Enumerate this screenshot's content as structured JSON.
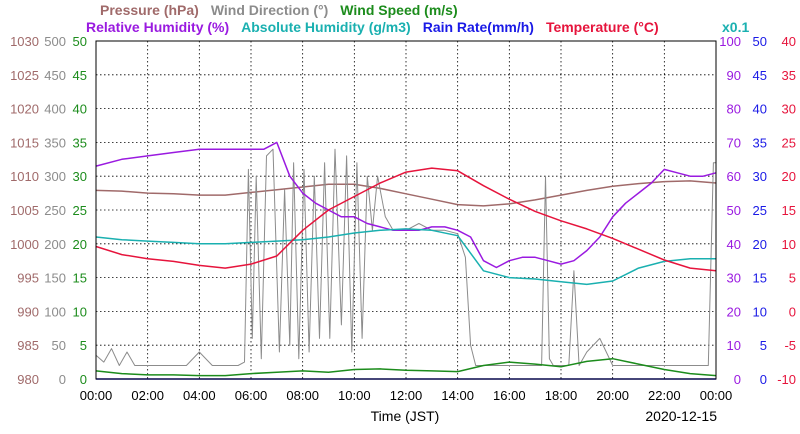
{
  "chart_data": {
    "type": "line",
    "legend": {
      "row1": [
        {
          "label": "Pressure (hPa)",
          "color": "#a06a6a"
        },
        {
          "label": "Wind Direction (°)",
          "color": "#8c8c8c"
        },
        {
          "label": "Wind Speed (m/s)",
          "color": "#1c8c1c"
        }
      ],
      "row2": [
        {
          "label": "Relative Humidity (%)",
          "color": "#9a1ae0"
        },
        {
          "label": "Absolute Humidity (g/m3)",
          "color": "#1ab0b0"
        },
        {
          "label": "Rain Rate(mm/h)",
          "color": "#1a1ae6"
        },
        {
          "label": "Temperature (°C)",
          "color": "#e6143c"
        }
      ],
      "scale_note": "x0.1"
    },
    "xlabel": "Time (JST)",
    "date": "2020-12-15",
    "x_ticks": [
      "00:00",
      "02:00",
      "04:00",
      "06:00",
      "08:00",
      "10:00",
      "12:00",
      "14:00",
      "16:00",
      "18:00",
      "20:00",
      "22:00",
      "00:00"
    ],
    "axes": {
      "pressure": {
        "color": "#a06a6a",
        "range": [
          980,
          1030
        ],
        "ticks": [
          "1030",
          "1025",
          "1020",
          "1015",
          "1010",
          "1005",
          "1000",
          "995",
          "990",
          "985",
          "980"
        ]
      },
      "wind_direction": {
        "color": "#8c8c8c",
        "range": [
          0,
          500
        ],
        "ticks": [
          "500",
          "450",
          "400",
          "350",
          "300",
          "250",
          "200",
          "150",
          "100",
          "50",
          "0"
        ]
      },
      "wind_speed": {
        "color": "#1c8c1c",
        "range": [
          0,
          50
        ],
        "ticks": [
          "50",
          "45",
          "40",
          "35",
          "30",
          "25",
          "20",
          "15",
          "10",
          "5",
          "0"
        ]
      },
      "relative_humidity": {
        "color": "#9a1ae0",
        "range": [
          0,
          100
        ],
        "ticks": [
          "100",
          "90",
          "80",
          "70",
          "60",
          "50",
          "40",
          "30",
          "20",
          "10",
          "0"
        ]
      },
      "rain_rate": {
        "color": "#1a1ae6",
        "range": [
          0,
          50
        ],
        "ticks": [
          "50",
          "45",
          "40",
          "35",
          "30",
          "25",
          "20",
          "15",
          "10",
          "5",
          "0"
        ]
      },
      "temperature": {
        "color": "#e6143c",
        "range": [
          -10,
          40
        ],
        "ticks": [
          "40",
          "35",
          "30",
          "25",
          "20",
          "15",
          "10",
          "5",
          "0",
          "-5",
          "-10"
        ]
      }
    },
    "grid": true,
    "series": [
      {
        "name": "Pressure (hPa)",
        "color": "#a06a6a",
        "axis": "pressure",
        "x": [
          0,
          1,
          2,
          3,
          4,
          5,
          6,
          7,
          8,
          9,
          10,
          11,
          12,
          13,
          14,
          15,
          16,
          17,
          18,
          19,
          20,
          21,
          22,
          23,
          24
        ],
        "y": [
          1007.9,
          1007.8,
          1007.5,
          1007.4,
          1007.2,
          1007.2,
          1007.6,
          1008.0,
          1008.4,
          1008.8,
          1008.8,
          1008.2,
          1007.4,
          1006.6,
          1005.8,
          1005.6,
          1005.9,
          1006.5,
          1007.2,
          1007.9,
          1008.5,
          1008.9,
          1009.2,
          1009.3,
          1009.0
        ]
      },
      {
        "name": "Wind Direction (°)",
        "color": "#8c8c8c",
        "axis": "wind_direction",
        "x": [
          0,
          0.3,
          0.6,
          0.9,
          1.2,
          1.5,
          2.0,
          2.5,
          3.0,
          3.5,
          4.0,
          4.5,
          5.0,
          5.5,
          5.75,
          5.9,
          6.05,
          6.2,
          6.4,
          6.6,
          6.85,
          7.1,
          7.3,
          7.5,
          7.65,
          7.85,
          8.05,
          8.25,
          8.45,
          8.65,
          8.85,
          9.05,
          9.25,
          9.5,
          9.7,
          9.9,
          10.1,
          10.3,
          10.5,
          10.7,
          10.9,
          11.2,
          11.5,
          12.0,
          12.5,
          13.0,
          13.5,
          14.0,
          14.3,
          14.5,
          14.7,
          15.0,
          15.5,
          16.0,
          16.5,
          17.0,
          17.25,
          17.4,
          17.55,
          17.7,
          18.0,
          18.3,
          18.5,
          18.7,
          19.0,
          19.5,
          20.0,
          20.5,
          21.0,
          21.5,
          22.0,
          22.5,
          23.0,
          23.4,
          23.7,
          23.9,
          24.0
        ],
        "y": [
          35,
          25,
          45,
          20,
          40,
          20,
          20,
          20,
          20,
          20,
          40,
          20,
          20,
          20,
          25,
          310,
          60,
          300,
          30,
          330,
          340,
          40,
          280,
          50,
          320,
          30,
          310,
          40,
          300,
          60,
          320,
          60,
          340,
          80,
          330,
          40,
          320,
          60,
          300,
          220,
          300,
          240,
          220,
          220,
          230,
          220,
          220,
          215,
          180,
          50,
          20,
          20,
          20,
          20,
          20,
          20,
          20,
          300,
          30,
          20,
          20,
          20,
          160,
          20,
          40,
          60,
          20,
          20,
          20,
          20,
          20,
          20,
          20,
          20,
          20,
          320,
          320
        ]
      },
      {
        "name": "Wind Speed (m/s)",
        "color": "#1c8c1c",
        "axis": "wind_speed",
        "x": [
          0,
          1,
          2,
          3,
          4,
          5,
          6,
          7,
          8,
          9,
          10,
          11,
          12,
          13,
          14,
          15,
          16,
          17,
          18,
          19,
          20,
          21,
          22,
          23,
          24
        ],
        "y": [
          1.2,
          0.8,
          0.6,
          0.6,
          0.5,
          0.5,
          0.8,
          1.0,
          1.2,
          1.0,
          1.4,
          1.5,
          1.3,
          1.2,
          1.1,
          2.0,
          2.5,
          2.2,
          1.8,
          2.6,
          3.0,
          2.2,
          1.4,
          0.8,
          0.5
        ]
      },
      {
        "name": "Relative Humidity (%)",
        "color": "#9a1ae0",
        "axis": "relative_humidity",
        "x": [
          0,
          1,
          2,
          3,
          4,
          5,
          6,
          6.5,
          7,
          7.5,
          8,
          8.5,
          9,
          9.5,
          10,
          10.5,
          11,
          11.5,
          12,
          12.5,
          13,
          13.5,
          14,
          14.5,
          15,
          15.5,
          16,
          16.5,
          17,
          17.5,
          18,
          18.5,
          19,
          19.5,
          20,
          20.5,
          21,
          21.5,
          22,
          22.5,
          23,
          23.5,
          24
        ],
        "y": [
          63,
          65,
          66,
          67,
          68,
          68,
          68,
          68,
          70,
          60,
          55,
          52,
          50,
          48,
          48,
          46,
          45,
          44,
          44,
          44,
          45,
          45,
          44,
          42,
          35,
          33,
          35,
          36,
          36,
          35,
          34,
          35,
          38,
          42,
          48,
          52,
          55,
          58,
          62,
          61,
          60,
          60,
          61
        ]
      },
      {
        "name": "Absolute Humidity (g/m3)",
        "color": "#1ab0b0",
        "axis": "rain_rate",
        "x": [
          0,
          1,
          2,
          3,
          4,
          5,
          6,
          7,
          8,
          9,
          10,
          11,
          12,
          13,
          14,
          15,
          16,
          17,
          18,
          19,
          20,
          21,
          22,
          23,
          24
        ],
        "y": [
          21.0,
          20.6,
          20.4,
          20.2,
          20.0,
          20.0,
          20.2,
          20.4,
          20.6,
          21.0,
          21.6,
          22.0,
          22.2,
          22.0,
          21.2,
          16.0,
          15.0,
          14.8,
          14.4,
          14.0,
          14.5,
          16.4,
          17.4,
          17.8,
          17.8
        ]
      },
      {
        "name": "Rain Rate(mm/h)",
        "color": "#1a1ae6",
        "axis": "rain_rate",
        "x": [
          0,
          24
        ],
        "y": [
          0,
          0
        ]
      },
      {
        "name": "Temperature (°C)",
        "color": "#e6143c",
        "axis": "temperature",
        "x": [
          0,
          1,
          2,
          3,
          4,
          5,
          6,
          7,
          8,
          9,
          10,
          11,
          12,
          13,
          14,
          15,
          16,
          17,
          18,
          19,
          20,
          21,
          22,
          23,
          24
        ],
        "y": [
          9.6,
          8.4,
          7.8,
          7.4,
          6.8,
          6.4,
          7.0,
          8.2,
          12.0,
          15.0,
          17.0,
          19.0,
          20.6,
          21.2,
          20.8,
          18.6,
          16.6,
          14.8,
          13.4,
          12.2,
          10.8,
          9.2,
          7.6,
          6.4,
          6.0
        ]
      }
    ]
  }
}
